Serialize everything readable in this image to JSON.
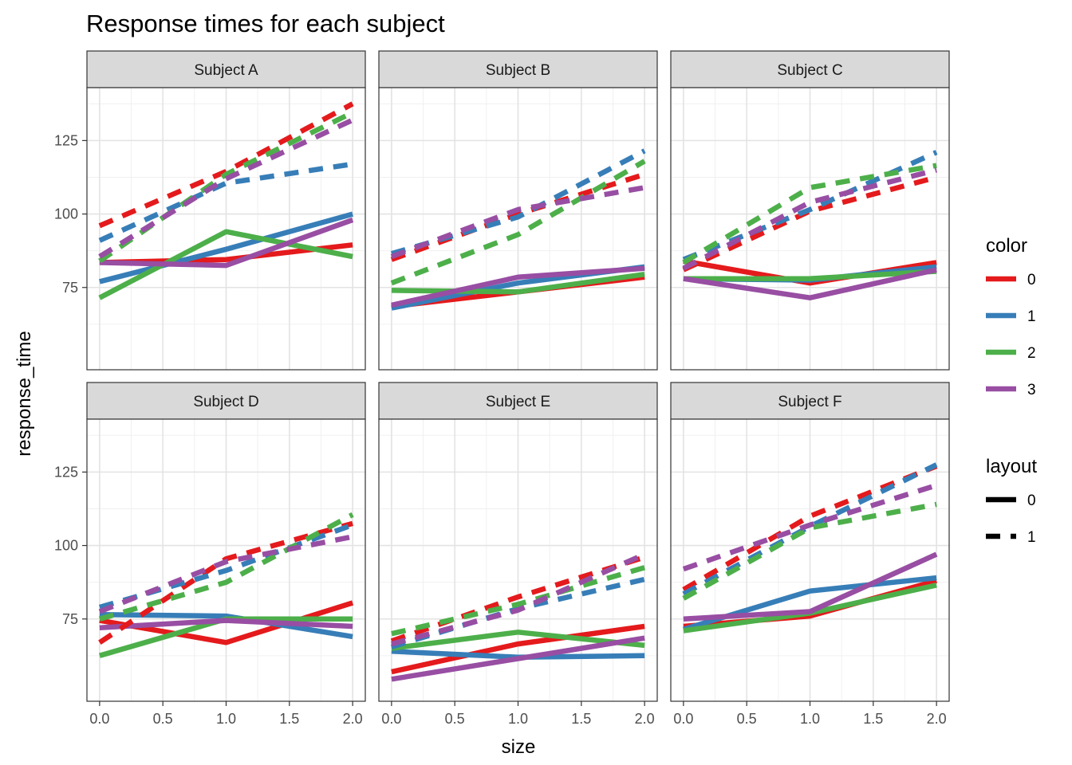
{
  "chart_data": {
    "type": "line",
    "title": "Response times for each subject",
    "xlabel": "size",
    "ylabel": "response_time",
    "xlim": [
      -0.1,
      2.1
    ],
    "ylim": [
      47,
      143
    ],
    "x_ticks": [
      "0.0",
      "0.5",
      "1.0",
      "1.5",
      "2.0"
    ],
    "y_ticks": [
      "75",
      "100",
      "125"
    ],
    "grid": true,
    "legend_placement": "right",
    "legend": {
      "color": {
        "title": "color",
        "entries": [
          "0",
          "1",
          "2",
          "3"
        ]
      },
      "layout": {
        "title": "layout",
        "entries": [
          "0",
          "1"
        ]
      }
    },
    "colors": {
      "0": "#e41a1c",
      "1": "#377eb8",
      "2": "#4daf4a",
      "3": "#984ea3"
    },
    "x": [
      0,
      1,
      2
    ],
    "panels": [
      {
        "label": "Subject A",
        "series": [
          {
            "color": "0",
            "layout": "0",
            "values": [
              83.5,
              84.5,
              89.5
            ]
          },
          {
            "color": "1",
            "layout": "0",
            "values": [
              77,
              88,
              100
            ]
          },
          {
            "color": "2",
            "layout": "0",
            "values": [
              71.5,
              94,
              85.5
            ]
          },
          {
            "color": "3",
            "layout": "0",
            "values": [
              83.5,
              82.5,
              98
            ]
          },
          {
            "color": "0",
            "layout": "1",
            "values": [
              96,
              114.5,
              137.5
            ]
          },
          {
            "color": "1",
            "layout": "1",
            "values": [
              91,
              110.5,
              117
            ]
          },
          {
            "color": "2",
            "layout": "1",
            "values": [
              84,
              113.5,
              134.5
            ]
          },
          {
            "color": "3",
            "layout": "1",
            "values": [
              85.5,
              112,
              132
            ]
          }
        ]
      },
      {
        "label": "Subject B",
        "series": [
          {
            "color": "0",
            "layout": "0",
            "values": [
              68.5,
              73.5,
              78.5
            ]
          },
          {
            "color": "1",
            "layout": "0",
            "values": [
              68,
              76.5,
              82
            ]
          },
          {
            "color": "2",
            "layout": "0",
            "values": [
              74,
              73.5,
              79.5
            ]
          },
          {
            "color": "3",
            "layout": "0",
            "values": [
              69,
              78.5,
              81.5
            ]
          },
          {
            "color": "0",
            "layout": "1",
            "values": [
              84.5,
              100,
              113.5
            ]
          },
          {
            "color": "1",
            "layout": "1",
            "values": [
              86.5,
              99,
              121.5
            ]
          },
          {
            "color": "2",
            "layout": "1",
            "values": [
              76.5,
              93,
              118
            ]
          },
          {
            "color": "3",
            "layout": "1",
            "values": [
              85.5,
              101.5,
              109
            ]
          }
        ]
      },
      {
        "label": "Subject C",
        "series": [
          {
            "color": "0",
            "layout": "0",
            "values": [
              84,
              76.5,
              83.5
            ]
          },
          {
            "color": "1",
            "layout": "0",
            "values": [
              78,
              77.5,
              82
            ]
          },
          {
            "color": "2",
            "layout": "0",
            "values": [
              78,
              78,
              80.5
            ]
          },
          {
            "color": "3",
            "layout": "0",
            "values": [
              78,
              71.5,
              81
            ]
          },
          {
            "color": "0",
            "layout": "1",
            "values": [
              81,
              101,
              112.5
            ]
          },
          {
            "color": "1",
            "layout": "1",
            "values": [
              84.5,
              101.5,
              121
            ]
          },
          {
            "color": "2",
            "layout": "1",
            "values": [
              83.5,
              109,
              116.5
            ]
          },
          {
            "color": "3",
            "layout": "1",
            "values": [
              81.5,
              104,
              115
            ]
          }
        ]
      },
      {
        "label": "Subject D",
        "series": [
          {
            "color": "0",
            "layout": "0",
            "values": [
              74.5,
              67,
              80.5
            ]
          },
          {
            "color": "1",
            "layout": "0",
            "values": [
              76.5,
              76,
              69
            ]
          },
          {
            "color": "2",
            "layout": "0",
            "values": [
              62.5,
              75,
              75
            ]
          },
          {
            "color": "3",
            "layout": "0",
            "values": [
              72,
              74.5,
              72.5
            ]
          },
          {
            "color": "0",
            "layout": "1",
            "values": [
              67,
              95.5,
              107.5
            ]
          },
          {
            "color": "1",
            "layout": "1",
            "values": [
              79,
              91.5,
              107
            ]
          },
          {
            "color": "2",
            "layout": "1",
            "values": [
              75,
              87.5,
              110.5
            ]
          },
          {
            "color": "3",
            "layout": "1",
            "values": [
              77.5,
              94.5,
              103
            ]
          }
        ]
      },
      {
        "label": "Subject E",
        "series": [
          {
            "color": "0",
            "layout": "0",
            "values": [
              57,
              66.5,
              72.5
            ]
          },
          {
            "color": "1",
            "layout": "0",
            "values": [
              64,
              62,
              62.5
            ]
          },
          {
            "color": "2",
            "layout": "0",
            "values": [
              65,
              70.5,
              66
            ]
          },
          {
            "color": "3",
            "layout": "0",
            "values": [
              54.5,
              61.5,
              68.5
            ]
          },
          {
            "color": "0",
            "layout": "1",
            "values": [
              67.5,
              82.5,
              96
            ]
          },
          {
            "color": "1",
            "layout": "1",
            "values": [
              65.5,
              78.5,
              88.5
            ]
          },
          {
            "color": "2",
            "layout": "1",
            "values": [
              70,
              80,
              92.5
            ]
          },
          {
            "color": "3",
            "layout": "1",
            "values": [
              66.5,
              78,
              97
            ]
          }
        ]
      },
      {
        "label": "Subject F",
        "series": [
          {
            "color": "0",
            "layout": "0",
            "values": [
              72.5,
              76,
              88
            ]
          },
          {
            "color": "1",
            "layout": "0",
            "values": [
              71.5,
              84.5,
              89
            ]
          },
          {
            "color": "2",
            "layout": "0",
            "values": [
              71,
              77,
              86.5
            ]
          },
          {
            "color": "3",
            "layout": "0",
            "values": [
              75,
              77.5,
              97
            ]
          },
          {
            "color": "0",
            "layout": "1",
            "values": [
              85,
              110,
              127
            ]
          },
          {
            "color": "1",
            "layout": "1",
            "values": [
              83.5,
              106.5,
              127.5
            ]
          },
          {
            "color": "2",
            "layout": "1",
            "values": [
              82,
              106,
              114
            ]
          },
          {
            "color": "3",
            "layout": "1",
            "values": [
              92,
              107,
              120.5
            ]
          }
        ]
      }
    ]
  }
}
